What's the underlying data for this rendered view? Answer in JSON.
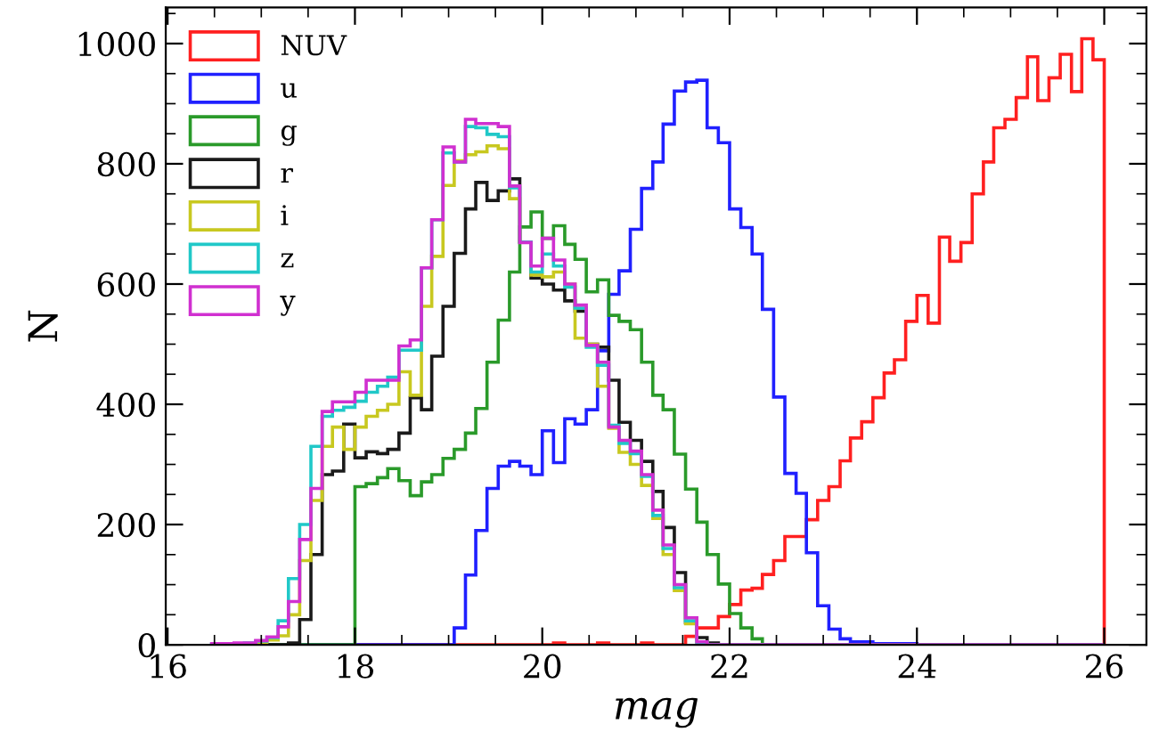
{
  "chart_data": {
    "type": "histogram",
    "xlabel": "mag",
    "ylabel": "N",
    "bins": [
      16.47,
      16.59,
      16.71,
      16.82,
      16.94,
      17.06,
      17.18,
      17.29,
      17.41,
      17.53,
      17.65,
      17.76,
      17.88,
      18.0,
      18.12,
      18.24,
      18.35,
      18.47,
      18.59,
      18.71,
      18.82,
      18.94,
      19.06,
      19.18,
      19.29,
      19.41,
      19.53,
      19.65,
      19.76,
      19.88,
      20.0,
      20.12,
      20.24,
      20.35,
      20.47,
      20.59,
      20.71,
      20.82,
      20.94,
      21.06,
      21.18,
      21.29,
      21.41,
      21.53,
      21.65,
      21.76,
      21.88,
      22.0,
      22.12,
      22.24,
      22.35,
      22.47,
      22.59,
      22.71,
      22.82,
      22.94,
      23.06,
      23.18,
      23.29,
      23.41,
      23.53,
      23.65,
      23.76,
      23.88,
      24.0,
      24.12,
      24.24,
      24.35,
      24.47,
      24.59,
      24.71,
      24.82,
      24.94,
      25.06,
      25.18,
      25.29,
      25.41,
      25.53,
      25.65,
      25.76,
      25.88,
      26.0
    ],
    "series": [
      {
        "name": "NUV",
        "color": "#ff2020",
        "values": [
          0,
          0,
          0,
          0,
          0,
          0,
          0,
          0,
          0,
          0,
          0,
          0,
          0,
          0,
          0,
          0,
          0,
          0,
          0,
          0,
          0,
          0,
          0,
          0,
          0,
          0,
          0,
          0,
          0,
          0,
          0,
          3,
          0,
          0,
          0,
          3,
          0,
          0,
          0,
          3,
          0,
          0,
          0,
          14,
          28,
          28,
          47,
          67,
          91,
          94,
          117,
          140,
          180,
          180,
          208,
          240,
          263,
          306,
          344,
          371,
          411,
          452,
          474,
          538,
          581,
          535,
          678,
          638,
          669,
          750,
          803,
          860,
          874,
          910,
          978,
          905,
          943,
          982,
          920,
          1008,
          973
        ]
      },
      {
        "name": "u",
        "color": "#2020ff",
        "values": [
          0,
          0,
          0,
          0,
          0,
          0,
          0,
          0,
          0,
          0,
          0,
          0,
          0,
          0,
          0,
          0,
          0,
          0,
          0,
          0,
          0,
          0,
          28,
          116,
          190,
          260,
          297,
          305,
          297,
          283,
          356,
          303,
          376,
          367,
          391,
          489,
          583,
          622,
          691,
          759,
          803,
          866,
          921,
          936,
          939,
          860,
          835,
          725,
          694,
          650,
          558,
          412,
          285,
          252,
          153,
          65,
          26,
          10,
          5,
          5,
          2,
          2,
          2,
          2,
          0,
          0,
          0,
          0,
          0,
          0,
          0,
          0,
          0,
          0,
          0,
          0,
          0,
          0,
          0,
          0,
          0
        ]
      },
      {
        "name": "g",
        "color": "#2a9a2a",
        "values": [
          0,
          0,
          0,
          0,
          0,
          0,
          0,
          0,
          0,
          0,
          0,
          0,
          0,
          263,
          268,
          278,
          293,
          273,
          248,
          271,
          283,
          310,
          325,
          352,
          393,
          470,
          540,
          620,
          695,
          720,
          676,
          697,
          666,
          641,
          587,
          607,
          548,
          538,
          524,
          470,
          415,
          391,
          317,
          259,
          204,
          150,
          101,
          52,
          28,
          10,
          0,
          0,
          0,
          0,
          0,
          0,
          0,
          0,
          0,
          0,
          0,
          0,
          0,
          0,
          0,
          0,
          0,
          0,
          0,
          0,
          0,
          0,
          0,
          0,
          0,
          0,
          0,
          0,
          0,
          0,
          0
        ]
      },
      {
        "name": "r",
        "color": "#1a1a1a",
        "values": [
          0,
          0,
          0,
          0,
          0,
          0,
          0,
          3,
          42,
          150,
          283,
          289,
          367,
          311,
          321,
          318,
          325,
          352,
          411,
          391,
          480,
          563,
          651,
          725,
          769,
          739,
          755,
          775,
          670,
          610,
          600,
          590,
          572,
          555,
          500,
          495,
          440,
          370,
          340,
          305,
          255,
          195,
          120,
          37,
          12,
          3,
          0,
          0,
          0,
          0,
          0,
          0,
          0,
          0,
          0,
          0,
          0,
          0,
          0,
          0,
          0,
          0,
          0,
          0,
          0,
          0,
          0,
          0,
          0,
          0,
          0,
          0,
          0,
          0,
          0,
          0,
          0,
          0,
          0,
          0,
          0
        ]
      },
      {
        "name": "i",
        "color": "#c8c820",
        "values": [
          0,
          1,
          1,
          2,
          4,
          8,
          15,
          50,
          140,
          240,
          330,
          362,
          325,
          362,
          380,
          390,
          400,
          454,
          415,
          563,
          646,
          764,
          805,
          815,
          820,
          830,
          825,
          742,
          670,
          615,
          612,
          620,
          600,
          510,
          500,
          430,
          360,
          320,
          300,
          265,
          210,
          150,
          90,
          35,
          4,
          0,
          0,
          0,
          0,
          0,
          0,
          0,
          0,
          0,
          0,
          0,
          0,
          0,
          0,
          0,
          0,
          0,
          0,
          0,
          0,
          0,
          0,
          0,
          0,
          0,
          0,
          0,
          0,
          0,
          0,
          0,
          0,
          0,
          0,
          0,
          0
        ]
      },
      {
        "name": "z",
        "color": "#20c8c8",
        "values": [
          1,
          2,
          2,
          3,
          6,
          12,
          40,
          110,
          200,
          330,
          380,
          390,
          395,
          405,
          420,
          430,
          445,
          490,
          490,
          627,
          707,
          818,
          803,
          862,
          860,
          849,
          845,
          760,
          670,
          620,
          650,
          630,
          595,
          560,
          495,
          465,
          365,
          335,
          318,
          280,
          215,
          160,
          95,
          40,
          4,
          0,
          0,
          0,
          0,
          0,
          0,
          0,
          0,
          0,
          0,
          0,
          0,
          0,
          0,
          0,
          0,
          0,
          0,
          0,
          0,
          0,
          0,
          0,
          0,
          0,
          0,
          0,
          0,
          0,
          0,
          0,
          0,
          0,
          0,
          0,
          0
        ]
      },
      {
        "name": "y",
        "color": "#d030d0",
        "values": [
          2,
          2,
          3,
          3,
          7,
          13,
          30,
          72,
          175,
          260,
          388,
          404,
          404,
          420,
          440,
          440,
          440,
          497,
          507,
          627,
          707,
          828,
          803,
          874,
          867,
          867,
          862,
          763,
          669,
          630,
          676,
          640,
          600,
          565,
          498,
          470,
          362,
          340,
          322,
          283,
          224,
          166,
          100,
          45,
          5,
          0,
          0,
          0,
          0,
          0,
          0,
          0,
          0,
          0,
          0,
          0,
          0,
          0,
          0,
          0,
          0,
          0,
          0,
          0,
          0,
          0,
          0,
          0,
          0,
          0,
          0,
          0,
          0,
          0,
          0,
          0,
          0,
          0,
          0,
          0,
          0
        ]
      }
    ],
    "xlim": [
      15.98,
      26.45
    ],
    "ylim": [
      0,
      1060
    ],
    "xticks": [
      16,
      18,
      20,
      22,
      24,
      26
    ],
    "yticks": [
      0,
      200,
      400,
      600,
      800,
      1000
    ],
    "legend": "upper left"
  }
}
